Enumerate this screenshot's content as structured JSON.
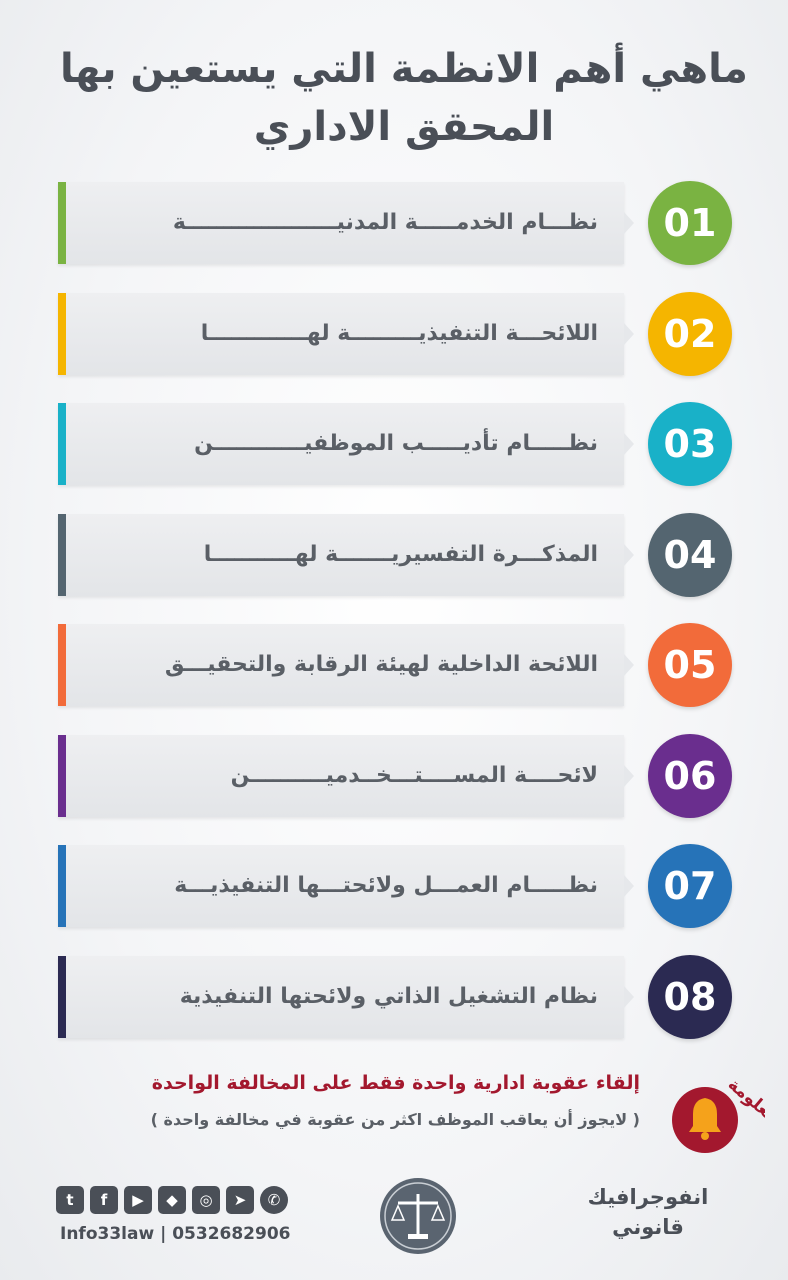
{
  "title": {
    "line1": "ماهي أهم الانظمة التي يستعين بها",
    "line2": "المحقق الاداري"
  },
  "items": [
    {
      "number": "01",
      "label": "نظـــام الخدمـــــة المدنيــــــــــــــــــــة",
      "color": "#7ab342"
    },
    {
      "number": "02",
      "label": "اللائحـــة التنفيذيـــــــــة لهـــــــــــــا",
      "color": "#f5b500"
    },
    {
      "number": "03",
      "label": "نظـــــام تأديـــــب الموظفيــــــــــــن",
      "color": "#19b1c8"
    },
    {
      "number": "04",
      "label": "المذكـــرة التفسيريـــــــة لهـــــــــــا",
      "color": "#546570"
    },
    {
      "number": "05",
      "label": "اللائحة الداخلية لهيئة الرقابة والتحقيـــق",
      "color": "#f26b3a"
    },
    {
      "number": "06",
      "label": "لائحــــة المســــتـــخــدميــــــــــن",
      "color": "#6a2e8e"
    },
    {
      "number": "07",
      "label": "نظـــــام العمـــل ولائحتـــها التنفيذيـــة",
      "color": "#2673b8"
    },
    {
      "number": "08",
      "label": "نظام التشغيل الذاتي ولائحتها التنفيذية",
      "color": "#2b2a52"
    }
  ],
  "note": {
    "main": "إلقاء عقوبة ادارية واحدة فقط على المخالفة الواحدة",
    "sub": "( لايجوز أن يعاقب الموظف اكثر من عقوبة في مخالفة واحدة )",
    "badge_text": "معلومة"
  },
  "footer": {
    "social_icons": [
      "whatsapp-icon",
      "telegram-icon",
      "instagram-icon",
      "snapchat-icon",
      "youtube-icon",
      "facebook-icon",
      "twitter-icon"
    ],
    "contact": "Info33law | 0532682906",
    "brand_line1": "انفوجرافيك",
    "brand_line2": "قانوني"
  },
  "colors": {
    "title": "#4a4f57",
    "note_main": "#a3182e"
  }
}
